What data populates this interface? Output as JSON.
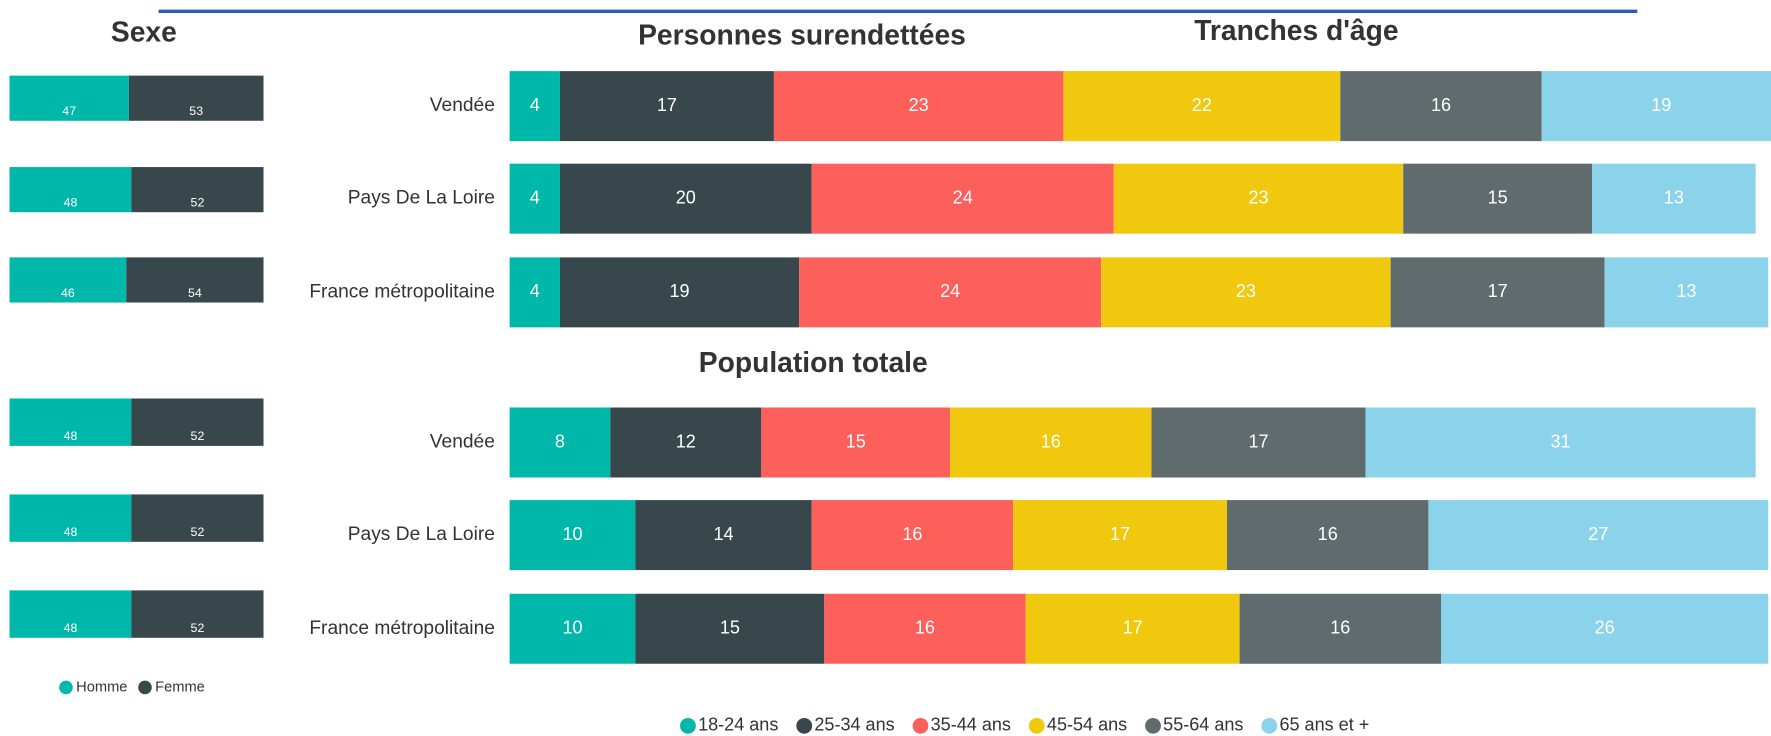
{
  "header": {
    "title": "Tranches d'âge"
  },
  "chart_data": [
    {
      "type": "stacked-bar-horizontal",
      "title": "Sexe",
      "series": [
        {
          "name": "Homme",
          "color": "#00b8a9",
          "values": [
            47,
            48,
            46,
            48,
            48,
            48
          ]
        },
        {
          "name": "Femme",
          "color": "#37474b",
          "values": [
            53,
            52,
            54,
            52,
            52,
            52
          ]
        }
      ]
    },
    {
      "type": "stacked-bar-horizontal",
      "title": "Personnes surendettées",
      "categories": [
        "Vendée",
        "Pays De La Loire",
        "France métropolitaine"
      ],
      "series": [
        {
          "name": "18-24 ans",
          "color": "#00b8a9",
          "values": [
            4,
            4,
            4
          ]
        },
        {
          "name": "25-34 ans",
          "color": "#37474b",
          "values": [
            17,
            20,
            19
          ]
        },
        {
          "name": "35-44 ans",
          "color": "#fd5f5b",
          "values": [
            23,
            24,
            24
          ]
        },
        {
          "name": "45-54 ans",
          "color": "#f0c80e",
          "values": [
            22,
            23,
            23
          ]
        },
        {
          "name": "55-64 ans",
          "color": "#5f6b6d",
          "values": [
            16,
            15,
            17
          ]
        },
        {
          "name": "65 ans et +",
          "color": "#8bd3ea",
          "values": [
            19,
            13,
            13
          ]
        }
      ]
    },
    {
      "type": "stacked-bar-horizontal",
      "title": "Population totale",
      "categories": [
        "Vendée",
        "Pays De La Loire",
        "France métropolitaine"
      ],
      "series": [
        {
          "name": "18-24 ans",
          "color": "#00b8a9",
          "values": [
            8,
            10,
            10
          ]
        },
        {
          "name": "25-34 ans",
          "color": "#37474b",
          "values": [
            12,
            14,
            15
          ]
        },
        {
          "name": "35-44 ans",
          "color": "#fd5f5b",
          "values": [
            15,
            16,
            16
          ]
        },
        {
          "name": "45-54 ans",
          "color": "#f0c80e",
          "values": [
            16,
            17,
            17
          ]
        },
        {
          "name": "55-64 ans",
          "color": "#5f6b6d",
          "values": [
            17,
            16,
            16
          ]
        },
        {
          "name": "65 ans et +",
          "color": "#8bd3ea",
          "values": [
            31,
            27,
            26
          ]
        }
      ]
    }
  ]
}
